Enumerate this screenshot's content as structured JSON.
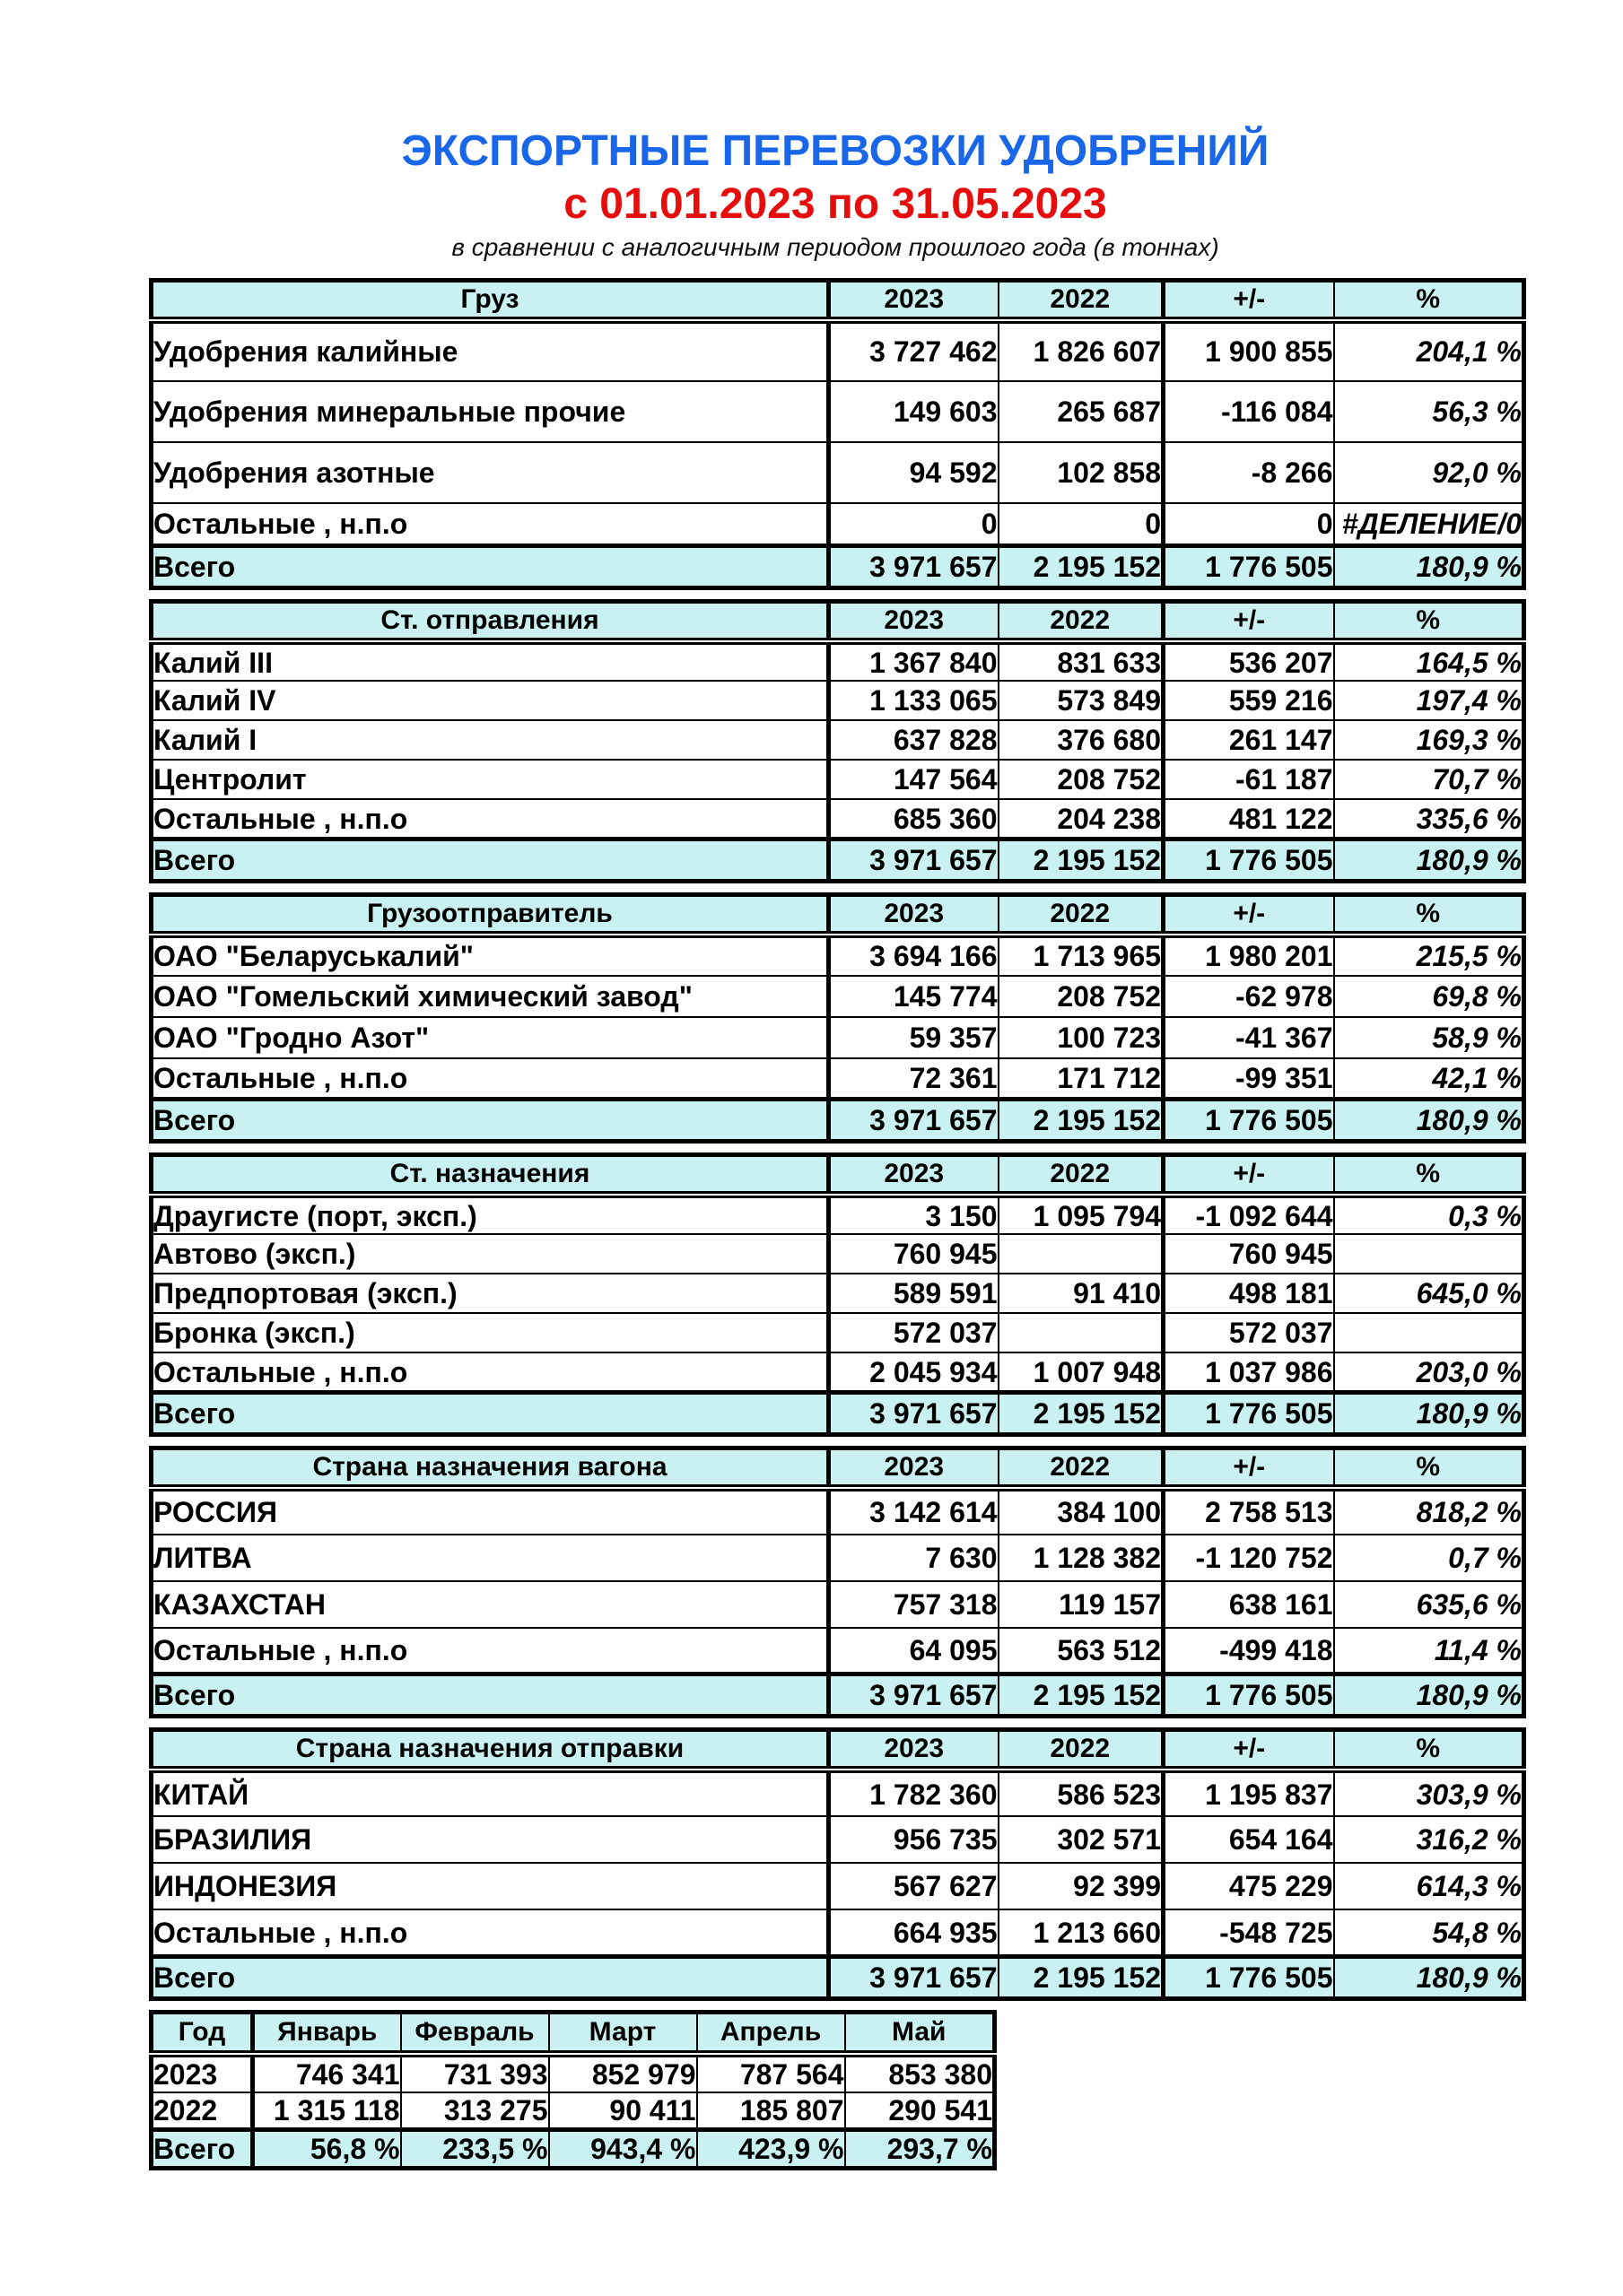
{
  "header": {
    "title": "ЭКСПОРТНЫЕ ПЕРЕВОЗКИ УДОБРЕНИЙ",
    "subtitle": "с 01.01.2023 по 31.05.2023",
    "note": "в сравнении с аналогичным периодом прошлого года (в тоннах)"
  },
  "colors": {
    "title_blue": "#1a66e8",
    "subtitle_red": "#e60d0d",
    "header_fill": "#c9f1f2",
    "border": "#000000"
  },
  "year_columns": [
    "2023",
    "2022",
    "+/-",
    "%"
  ],
  "total_label": "Всего",
  "total_row": {
    "y2023": "3 971 657",
    "y2022": "2 195 152",
    "delta": "1 776 505",
    "pct": "180,9 %"
  },
  "sections": [
    {
      "id": "cargo",
      "header": "Груз",
      "rows": [
        {
          "label": "Удобрения калийные",
          "y2023": "3 727 462",
          "y2022": "1 826 607",
          "delta": "1 900 855",
          "pct": "204,1 %"
        },
        {
          "label": "Удобрения минеральные прочие",
          "y2023": "149 603",
          "y2022": "265 687",
          "delta": "-116 084",
          "pct": "56,3 %"
        },
        {
          "label": "Удобрения азотные",
          "y2023": "94 592",
          "y2022": "102 858",
          "delta": "-8 266",
          "pct": "92,0 %"
        },
        {
          "label": "Остальные , н.п.о",
          "y2023": "0",
          "y2022": "0",
          "delta": "0",
          "pct": "#ДЕЛЕНИЕ/0"
        }
      ]
    },
    {
      "id": "departure-station",
      "header": "Ст. отправления",
      "rows": [
        {
          "label": "Калий III",
          "y2023": "1 367 840",
          "y2022": "831 633",
          "delta": "536 207",
          "pct": "164,5 %"
        },
        {
          "label": "Калий IV",
          "y2023": "1 133 065",
          "y2022": "573 849",
          "delta": "559 216",
          "pct": "197,4 %"
        },
        {
          "label": "Калий I",
          "y2023": "637 828",
          "y2022": "376 680",
          "delta": "261 147",
          "pct": "169,3 %"
        },
        {
          "label": "Центролит",
          "y2023": "147 564",
          "y2022": "208 752",
          "delta": "-61 187",
          "pct": "70,7 %"
        },
        {
          "label": "Остальные , н.п.о",
          "y2023": "685 360",
          "y2022": "204 238",
          "delta": "481 122",
          "pct": "335,6 %"
        }
      ]
    },
    {
      "id": "shipper",
      "header": "Грузоотправитель",
      "rows": [
        {
          "label": "ОАО \"Беларуськалий\"",
          "y2023": "3 694 166",
          "y2022": "1 713 965",
          "delta": "1 980 201",
          "pct": "215,5 %"
        },
        {
          "label": "ОАО \"Гомельский химический завод\"",
          "y2023": "145 774",
          "y2022": "208 752",
          "delta": "-62 978",
          "pct": "69,8 %"
        },
        {
          "label": "ОАО \"Гродно Азот\"",
          "y2023": "59 357",
          "y2022": "100 723",
          "delta": "-41 367",
          "pct": "58,9 %"
        },
        {
          "label": "Остальные , н.п.о",
          "y2023": "72 361",
          "y2022": "171 712",
          "delta": "-99 351",
          "pct": "42,1 %"
        }
      ]
    },
    {
      "id": "destination-station",
      "header": "Ст. назначения",
      "rows": [
        {
          "label": "Драугисте (порт, эксп.)",
          "y2023": "3 150",
          "y2022": "1 095 794",
          "delta": "-1 092 644",
          "pct": "0,3 %"
        },
        {
          "label": "Автово (эксп.)",
          "y2023": "760 945",
          "y2022": "",
          "delta": "760 945",
          "pct": ""
        },
        {
          "label": "Предпортовая (эксп.)",
          "y2023": "589 591",
          "y2022": "91 410",
          "delta": "498 181",
          "pct": "645,0 %"
        },
        {
          "label": "Бронка (эксп.)",
          "y2023": "572 037",
          "y2022": "",
          "delta": "572 037",
          "pct": ""
        },
        {
          "label": "Остальные , н.п.о",
          "y2023": "2 045 934",
          "y2022": "1 007 948",
          "delta": "1 037 986",
          "pct": "203,0 %"
        }
      ]
    },
    {
      "id": "wagon-destination-country",
      "header": "Страна назначения вагона",
      "rows": [
        {
          "label": "РОССИЯ",
          "y2023": "3 142 614",
          "y2022": "384 100",
          "delta": "2 758 513",
          "pct": "818,2 %"
        },
        {
          "label": "ЛИТВА",
          "y2023": "7 630",
          "y2022": "1 128 382",
          "delta": "-1 120 752",
          "pct": "0,7 %"
        },
        {
          "label": "КАЗАХСТАН",
          "y2023": "757 318",
          "y2022": "119 157",
          "delta": "638 161",
          "pct": "635,6 %"
        },
        {
          "label": "Остальные , н.п.о",
          "y2023": "64 095",
          "y2022": "563 512",
          "delta": "-499 418",
          "pct": "11,4 %"
        }
      ]
    },
    {
      "id": "shipment-destination-country",
      "header": "Страна назначения отправки",
      "rows": [
        {
          "label": "КИТАЙ",
          "y2023": "1 782 360",
          "y2022": "586 523",
          "delta": "1 195 837",
          "pct": "303,9 %"
        },
        {
          "label": "БРАЗИЛИЯ",
          "y2023": "956 735",
          "y2022": "302 571",
          "delta": "654 164",
          "pct": "316,2 %"
        },
        {
          "label": "ИНДОНЕЗИЯ",
          "y2023": "567 627",
          "y2022": "92 399",
          "delta": "475 229",
          "pct": "614,3 %"
        },
        {
          "label": "Остальные , н.п.о",
          "y2023": "664 935",
          "y2022": "1 213 660",
          "delta": "-548 725",
          "pct": "54,8 %"
        }
      ]
    }
  ],
  "months_table": {
    "columns": [
      "Год",
      "Январь",
      "Февраль",
      "Март",
      "Апрель",
      "Май"
    ],
    "rows": [
      {
        "label": "2023",
        "values": [
          "746 341",
          "731 393",
          "852 979",
          "787 564",
          "853 380"
        ]
      },
      {
        "label": "2022",
        "values": [
          "1 315 118",
          "313 275",
          "90 411",
          "185 807",
          "290 541"
        ]
      }
    ],
    "total": {
      "label": "Всего",
      "values": [
        "56,8 %",
        "233,5 %",
        "943,4 %",
        "423,9 %",
        "293,7 %"
      ]
    }
  }
}
